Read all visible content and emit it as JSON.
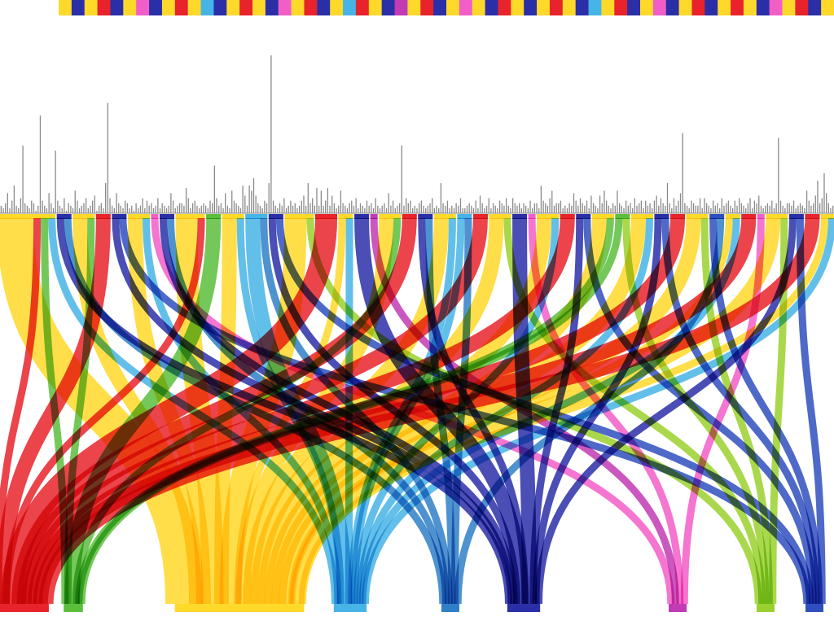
{
  "palette": {
    "red": "#e8232b",
    "green": "#5cbf3c",
    "yellow": "#ffd92a",
    "lightblue": "#46b4e6",
    "blue": "#2f7fc8",
    "navy": "#2a2fa8",
    "magenta": "#c23ab4",
    "lime": "#9bd12e",
    "royal": "#2f4fbf",
    "pink": "#f25ec8",
    "gray": "#8a8a8a"
  },
  "top_strip": {
    "segment_colors": [
      "yellow",
      "navy",
      "yellow",
      "red",
      "navy",
      "yellow",
      "pink",
      "navy",
      "yellow",
      "red",
      "yellow",
      "lightblue",
      "navy",
      "yellow",
      "red",
      "yellow",
      "navy",
      "pink",
      "yellow",
      "red",
      "navy",
      "yellow",
      "lightblue",
      "red",
      "yellow",
      "navy",
      "magenta",
      "yellow",
      "red",
      "navy",
      "yellow",
      "pink",
      "yellow",
      "navy",
      "red",
      "yellow",
      "navy",
      "yellow",
      "red",
      "yellow",
      "navy",
      "lightblue",
      "yellow",
      "red",
      "navy",
      "yellow",
      "pink",
      "navy",
      "yellow",
      "red",
      "navy",
      "yellow",
      "red",
      "yellow",
      "navy",
      "pink",
      "yellow",
      "red",
      "navy",
      "yellow"
    ]
  },
  "histogram": {
    "bar_color": "gray",
    "values": [
      3,
      2,
      4,
      8,
      2,
      5,
      11,
      3,
      2,
      6,
      27,
      4,
      3,
      2,
      5,
      4,
      1,
      3,
      39,
      5,
      3,
      2,
      8,
      4,
      2,
      25,
      5,
      3,
      2,
      6,
      1,
      4,
      3,
      2,
      9,
      5,
      2,
      3,
      4,
      6,
      2,
      3,
      5,
      7,
      1,
      3,
      4,
      2,
      12,
      44,
      6,
      3,
      2,
      8,
      4,
      3,
      2,
      5,
      4,
      2,
      3,
      1,
      4,
      2,
      3,
      6,
      2,
      5,
      3,
      4,
      2,
      3,
      6,
      2,
      4,
      3,
      2,
      3,
      8,
      5,
      2,
      3,
      4,
      4,
      3,
      10,
      6,
      2,
      4,
      5,
      3,
      2,
      3,
      4,
      3,
      2,
      5,
      4,
      19,
      6,
      3,
      4,
      2,
      8,
      3,
      2,
      9,
      5,
      4,
      3,
      2,
      11,
      7,
      3,
      11,
      9,
      14,
      7,
      4,
      3,
      2,
      5,
      4,
      12,
      63,
      5,
      3,
      2,
      4,
      3,
      6,
      2,
      3,
      5,
      3,
      4,
      2,
      3,
      5,
      7,
      3,
      12,
      4,
      6,
      3,
      10,
      3,
      9,
      3,
      5,
      10,
      3,
      7,
      4,
      2,
      3,
      9,
      4,
      3,
      2,
      4,
      5,
      3,
      6,
      2,
      4,
      3,
      2,
      5,
      3,
      4,
      2,
      6,
      3,
      2,
      3,
      4,
      2,
      8,
      3,
      5,
      2,
      3,
      4,
      27,
      3,
      6,
      4,
      5,
      2,
      3,
      2,
      4,
      5,
      3,
      2,
      3,
      4,
      6,
      2,
      3,
      2,
      12,
      4,
      3,
      5,
      2,
      3,
      2,
      4,
      3,
      6,
      2,
      2,
      3,
      4,
      3,
      2,
      5,
      2,
      7,
      4,
      2,
      3,
      6,
      2,
      4,
      3,
      2,
      5,
      4,
      3,
      6,
      3,
      2,
      6,
      4,
      3,
      4,
      2,
      4,
      3,
      2,
      5,
      2,
      4,
      4,
      2,
      11,
      5,
      4,
      3,
      6,
      9,
      3,
      4,
      4,
      5,
      2,
      3,
      2,
      4,
      3,
      8,
      5,
      3,
      6,
      4,
      3,
      5,
      2,
      7,
      4,
      3,
      2,
      7,
      4,
      9,
      5,
      3,
      2,
      4,
      3,
      9,
      4,
      3,
      2,
      5,
      3,
      4,
      2,
      6,
      3,
      4,
      5,
      2,
      5,
      3,
      4,
      2,
      5,
      7,
      3,
      6,
      4,
      3,
      12,
      4,
      2,
      6,
      3,
      5,
      8,
      32,
      4,
      3,
      2,
      5,
      4,
      3,
      3,
      6,
      2,
      6,
      4,
      3,
      2,
      5,
      3,
      4,
      2,
      6,
      3,
      4,
      5,
      3,
      2,
      5,
      3,
      6,
      4,
      3,
      2,
      4,
      6,
      2,
      5,
      4,
      7,
      3,
      2,
      3,
      4,
      3,
      5,
      2,
      4,
      30,
      5,
      3,
      2,
      4,
      4,
      3,
      5,
      2,
      3,
      4,
      3,
      2,
      9,
      5,
      3,
      4,
      7,
      13,
      4,
      6,
      16,
      8,
      4,
      2,
      3
    ],
    "max_value": 63
  },
  "upper_nodes": [
    {
      "color": "yellow",
      "value": 8
    },
    {
      "color": "navy",
      "value": 2
    },
    {
      "color": "yellow",
      "value": 3
    },
    {
      "color": "red",
      "value": 2
    },
    {
      "color": "navy",
      "value": 2
    },
    {
      "color": "yellow",
      "value": 3
    },
    {
      "color": "pink",
      "value": 1
    },
    {
      "color": "navy",
      "value": 2
    },
    {
      "color": "yellow",
      "value": 4
    },
    {
      "color": "green",
      "value": 2
    },
    {
      "color": "yellow",
      "value": 3
    },
    {
      "color": "lightblue",
      "value": 3
    },
    {
      "color": "navy",
      "value": 2
    },
    {
      "color": "yellow",
      "value": 4
    },
    {
      "color": "red",
      "value": 3
    },
    {
      "color": "yellow",
      "value": 2
    },
    {
      "color": "navy",
      "value": 2
    },
    {
      "color": "magenta",
      "value": 1
    },
    {
      "color": "yellow",
      "value": 3
    },
    {
      "color": "red",
      "value": 2
    },
    {
      "color": "navy",
      "value": 2
    },
    {
      "color": "yellow",
      "value": 3
    },
    {
      "color": "lightblue",
      "value": 2
    },
    {
      "color": "red",
      "value": 2
    },
    {
      "color": "yellow",
      "value": 3
    },
    {
      "color": "navy",
      "value": 2
    },
    {
      "color": "pink",
      "value": 1
    },
    {
      "color": "yellow",
      "value": 3
    },
    {
      "color": "red",
      "value": 2
    },
    {
      "color": "navy",
      "value": 2
    },
    {
      "color": "yellow",
      "value": 3
    },
    {
      "color": "green",
      "value": 2
    },
    {
      "color": "yellow",
      "value": 3
    },
    {
      "color": "navy",
      "value": 2
    },
    {
      "color": "red",
      "value": 2
    },
    {
      "color": "yellow",
      "value": 3
    },
    {
      "color": "royal",
      "value": 2
    },
    {
      "color": "yellow",
      "value": 2
    },
    {
      "color": "red",
      "value": 2
    },
    {
      "color": "pink",
      "value": 1
    },
    {
      "color": "yellow",
      "value": 3
    },
    {
      "color": "navy",
      "value": 2
    },
    {
      "color": "red",
      "value": 2
    },
    {
      "color": "yellow",
      "value": 2
    }
  ],
  "lower_nodes": [
    {
      "color": "red",
      "label": ""
    },
    {
      "color": "green",
      "label": ""
    },
    {
      "color": "yellow",
      "label": ""
    },
    {
      "color": "lightblue",
      "label": ""
    },
    {
      "color": "blue",
      "label": ""
    },
    {
      "color": "navy",
      "label": ""
    },
    {
      "color": "magenta",
      "label": ""
    },
    {
      "color": "lime",
      "label": ""
    },
    {
      "color": "royal",
      "label": ""
    }
  ],
  "flows": [
    {
      "from": 0,
      "to": 2,
      "value": 5
    },
    {
      "from": 0,
      "to": 0,
      "value": 1
    },
    {
      "from": 0,
      "to": 1,
      "value": 1
    },
    {
      "from": 0,
      "to": 3,
      "value": 1
    },
    {
      "from": 1,
      "to": 5,
      "value": 1
    },
    {
      "from": 1,
      "to": 4,
      "value": 1
    },
    {
      "from": 2,
      "to": 2,
      "value": 2
    },
    {
      "from": 2,
      "to": 1,
      "value": 1
    },
    {
      "from": 3,
      "to": 0,
      "value": 2
    },
    {
      "from": 4,
      "to": 5,
      "value": 1
    },
    {
      "from": 4,
      "to": 8,
      "value": 1
    },
    {
      "from": 5,
      "to": 2,
      "value": 2
    },
    {
      "from": 5,
      "to": 3,
      "value": 1
    },
    {
      "from": 6,
      "to": 6,
      "value": 1
    },
    {
      "from": 7,
      "to": 5,
      "value": 1
    },
    {
      "from": 7,
      "to": 4,
      "value": 1
    },
    {
      "from": 8,
      "to": 2,
      "value": 3
    },
    {
      "from": 8,
      "to": 0,
      "value": 1
    },
    {
      "from": 9,
      "to": 1,
      "value": 2
    },
    {
      "from": 10,
      "to": 2,
      "value": 2
    },
    {
      "from": 10,
      "to": 3,
      "value": 1
    },
    {
      "from": 11,
      "to": 3,
      "value": 2
    },
    {
      "from": 11,
      "to": 4,
      "value": 1
    },
    {
      "from": 12,
      "to": 5,
      "value": 1
    },
    {
      "from": 12,
      "to": 8,
      "value": 1
    },
    {
      "from": 13,
      "to": 2,
      "value": 3
    },
    {
      "from": 13,
      "to": 7,
      "value": 1
    },
    {
      "from": 14,
      "to": 0,
      "value": 3
    },
    {
      "from": 15,
      "to": 2,
      "value": 1
    },
    {
      "from": 15,
      "to": 3,
      "value": 1
    },
    {
      "from": 16,
      "to": 5,
      "value": 2
    },
    {
      "from": 17,
      "to": 6,
      "value": 1
    },
    {
      "from": 18,
      "to": 2,
      "value": 2
    },
    {
      "from": 18,
      "to": 1,
      "value": 1
    },
    {
      "from": 19,
      "to": 0,
      "value": 2
    },
    {
      "from": 20,
      "to": 5,
      "value": 1
    },
    {
      "from": 20,
      "to": 4,
      "value": 1
    },
    {
      "from": 21,
      "to": 2,
      "value": 2
    },
    {
      "from": 21,
      "to": 3,
      "value": 1
    },
    {
      "from": 22,
      "to": 3,
      "value": 1
    },
    {
      "from": 22,
      "to": 4,
      "value": 1
    },
    {
      "from": 23,
      "to": 0,
      "value": 2
    },
    {
      "from": 24,
      "to": 2,
      "value": 2
    },
    {
      "from": 24,
      "to": 7,
      "value": 1
    },
    {
      "from": 25,
      "to": 5,
      "value": 2
    },
    {
      "from": 26,
      "to": 6,
      "value": 1
    },
    {
      "from": 27,
      "to": 2,
      "value": 2
    },
    {
      "from": 27,
      "to": 3,
      "value": 1
    },
    {
      "from": 28,
      "to": 0,
      "value": 2
    },
    {
      "from": 29,
      "to": 5,
      "value": 1
    },
    {
      "from": 29,
      "to": 8,
      "value": 1
    },
    {
      "from": 30,
      "to": 2,
      "value": 2
    },
    {
      "from": 30,
      "to": 1,
      "value": 1
    },
    {
      "from": 31,
      "to": 1,
      "value": 1
    },
    {
      "from": 31,
      "to": 7,
      "value": 1
    },
    {
      "from": 32,
      "to": 2,
      "value": 2
    },
    {
      "from": 32,
      "to": 3,
      "value": 1
    },
    {
      "from": 33,
      "to": 5,
      "value": 1
    },
    {
      "from": 33,
      "to": 8,
      "value": 1
    },
    {
      "from": 34,
      "to": 0,
      "value": 2
    },
    {
      "from": 35,
      "to": 2,
      "value": 2
    },
    {
      "from": 35,
      "to": 7,
      "value": 1
    },
    {
      "from": 36,
      "to": 8,
      "value": 1
    },
    {
      "from": 36,
      "to": 4,
      "value": 1
    },
    {
      "from": 37,
      "to": 2,
      "value": 1
    },
    {
      "from": 37,
      "to": 3,
      "value": 1
    },
    {
      "from": 38,
      "to": 0,
      "value": 2
    },
    {
      "from": 39,
      "to": 6,
      "value": 1
    },
    {
      "from": 40,
      "to": 2,
      "value": 2
    },
    {
      "from": 40,
      "to": 7,
      "value": 1
    },
    {
      "from": 41,
      "to": 5,
      "value": 1
    },
    {
      "from": 41,
      "to": 8,
      "value": 1
    },
    {
      "from": 42,
      "to": 0,
      "value": 2
    },
    {
      "from": 43,
      "to": 2,
      "value": 1
    },
    {
      "from": 43,
      "to": 3,
      "value": 1
    }
  ]
}
